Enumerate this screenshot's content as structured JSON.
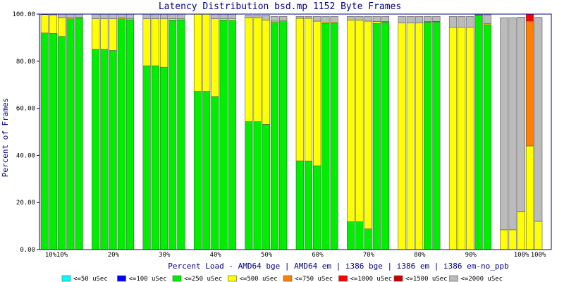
{
  "chart_data": {
    "type": "bar",
    "stacked": true,
    "title": "Latency Distribution bsd.mp 1152 Byte Frames",
    "xlabel": "Percent Load - AMD64 bge | AMD64 em | i386 bge | i386 em | i386 em-no_ppb",
    "ylabel": "Percent of Frames",
    "ylim": [
      0,
      100
    ],
    "yticks": [
      "0.00",
      "20.00",
      "40.00",
      "60.00",
      "80.00",
      "100.00"
    ],
    "grid": false,
    "legend_placement": "bottom",
    "groups": [
      {
        "label": "10%",
        "second_label": "10%"
      },
      {
        "label": "20%"
      },
      {
        "label": "30%"
      },
      {
        "label": "40%"
      },
      {
        "label": "50%"
      },
      {
        "label": "60%"
      },
      {
        "label": "70%"
      },
      {
        "label": "80%"
      },
      {
        "label": "90%"
      },
      {
        "label": "100%",
        "second_label": "100%"
      }
    ],
    "series": [
      {
        "name": "<=50 uSec",
        "color": "#00ffff"
      },
      {
        "name": "<=100 uSec",
        "color": "#0000ff"
      },
      {
        "name": "<=250 uSec",
        "color": "#00ee00"
      },
      {
        "name": "<=500 uSec",
        "color": "#ffff00"
      },
      {
        "name": "<=750 uSec",
        "color": "#ff8000"
      },
      {
        "name": "<=1000 uSec",
        "color": "#ff0000"
      },
      {
        "name": "<=1500 uSec",
        "color": "#cc0000"
      },
      {
        "name": "<=2000 uSec",
        "color": "#bbbbbb"
      }
    ],
    "bars": [
      [
        [
          2,
          92
        ],
        [
          3,
          7.8
        ],
        [
          7,
          0.2
        ]
      ],
      [
        [
          2,
          91.8
        ],
        [
          3,
          7.9
        ],
        [
          7,
          0.3
        ]
      ],
      [
        [
          2,
          90.5
        ],
        [
          3,
          8
        ],
        [
          7,
          1.5
        ]
      ],
      [
        [
          2,
          98
        ],
        [
          3,
          0.5
        ],
        [
          7,
          1.5
        ]
      ],
      [
        [
          2,
          98.3
        ],
        [
          3,
          0.2
        ],
        [
          7,
          1.5
        ]
      ],
      [
        [
          2,
          85
        ],
        [
          3,
          13
        ],
        [
          7,
          2
        ]
      ],
      [
        [
          2,
          85
        ],
        [
          3,
          13
        ],
        [
          7,
          2
        ]
      ],
      [
        [
          2,
          84.6
        ],
        [
          3,
          13.4
        ],
        [
          7,
          2
        ]
      ],
      [
        [
          2,
          98
        ],
        [
          3,
          0.5
        ],
        [
          7,
          1.5
        ]
      ],
      [
        [
          2,
          97.6
        ],
        [
          3,
          0.4
        ],
        [
          7,
          2
        ]
      ],
      [
        [
          2,
          78
        ],
        [
          3,
          20
        ],
        [
          7,
          2
        ]
      ],
      [
        [
          2,
          78
        ],
        [
          3,
          20
        ],
        [
          7,
          2
        ]
      ],
      [
        [
          2,
          77.5
        ],
        [
          3,
          20.5
        ],
        [
          7,
          2
        ]
      ],
      [
        [
          2,
          97.5
        ],
        [
          3,
          0.5
        ],
        [
          7,
          2
        ]
      ],
      [
        [
          2,
          97.6
        ],
        [
          3,
          0.4
        ],
        [
          7,
          2
        ]
      ],
      [
        [
          2,
          67.2
        ],
        [
          3,
          32.8
        ]
      ],
      [
        [
          2,
          67.2
        ],
        [
          3,
          32.8
        ]
      ],
      [
        [
          2,
          65
        ],
        [
          3,
          33
        ],
        [
          7,
          2
        ]
      ],
      [
        [
          2,
          97.5
        ],
        [
          3,
          0.5
        ],
        [
          7,
          2
        ]
      ],
      [
        [
          2,
          97.4
        ],
        [
          3,
          0.6
        ],
        [
          7,
          2
        ]
      ],
      [
        [
          2,
          54.3
        ],
        [
          3,
          44.2
        ],
        [
          7,
          1
        ]
      ],
      [
        [
          2,
          54.3
        ],
        [
          3,
          44.2
        ],
        [
          7,
          1
        ]
      ],
      [
        [
          2,
          53.2
        ],
        [
          3,
          44.3
        ],
        [
          7,
          2
        ]
      ],
      [
        [
          2,
          96.5
        ],
        [
          3,
          0.5
        ],
        [
          7,
          2
        ]
      ],
      [
        [
          2,
          96.8
        ],
        [
          3,
          0.4
        ],
        [
          7,
          1.8
        ]
      ],
      [
        [
          2,
          37.7
        ],
        [
          3,
          60.5
        ],
        [
          7,
          0.8
        ]
      ],
      [
        [
          2,
          37.6
        ],
        [
          3,
          60.6
        ],
        [
          7,
          0.8
        ]
      ],
      [
        [
          2,
          35.6
        ],
        [
          3,
          61.4
        ],
        [
          7,
          2
        ]
      ],
      [
        [
          2,
          96
        ],
        [
          3,
          0.6
        ],
        [
          7,
          2.4
        ]
      ],
      [
        [
          2,
          96.1
        ],
        [
          3,
          0.5
        ],
        [
          7,
          2.4
        ]
      ],
      [
        [
          2,
          11.8
        ],
        [
          3,
          85.7
        ],
        [
          7,
          1.5
        ]
      ],
      [
        [
          2,
          11.8
        ],
        [
          3,
          85.6
        ],
        [
          7,
          1.6
        ]
      ],
      [
        [
          2,
          8.8
        ],
        [
          3,
          88.2
        ],
        [
          7,
          2
        ]
      ],
      [
        [
          2,
          96
        ],
        [
          3,
          0.8
        ],
        [
          7,
          2.2
        ]
      ],
      [
        [
          2,
          96.6
        ],
        [
          3,
          0.2
        ],
        [
          7,
          2.2
        ]
      ],
      [
        [
          3,
          96.3
        ],
        [
          7,
          2.7
        ]
      ],
      [
        [
          3,
          96.3
        ],
        [
          7,
          2.7
        ]
      ],
      [
        [
          3,
          96.3
        ],
        [
          7,
          2.7
        ]
      ],
      [
        [
          2,
          96.6
        ],
        [
          3,
          0.2
        ],
        [
          7,
          2.2
        ]
      ],
      [
        [
          2,
          96.7
        ],
        [
          3,
          0.2
        ],
        [
          7,
          2.1
        ]
      ],
      [
        [
          3,
          94.5
        ],
        [
          7,
          4.5
        ]
      ],
      [
        [
          3,
          94.4
        ],
        [
          7,
          4.6
        ]
      ],
      [
        [
          3,
          94.4
        ],
        [
          7,
          4.6
        ]
      ],
      [
        [
          2,
          99.5
        ],
        [
          3,
          0.2
        ],
        [
          7,
          0.3
        ]
      ],
      [
        [
          2,
          95.5
        ],
        [
          3,
          0.4
        ],
        [
          7,
          3.8
        ]
      ],
      [
        [
          3,
          8.4
        ],
        [
          7,
          90.1
        ]
      ],
      [
        [
          3,
          8.4
        ],
        [
          7,
          90.1
        ]
      ],
      [
        [
          3,
          16
        ],
        [
          7,
          82.7
        ]
      ],
      [
        [
          3,
          44
        ],
        [
          4,
          53
        ],
        [
          5,
          3
        ]
      ],
      [
        [
          3,
          12
        ],
        [
          7,
          86.6
        ]
      ]
    ]
  }
}
